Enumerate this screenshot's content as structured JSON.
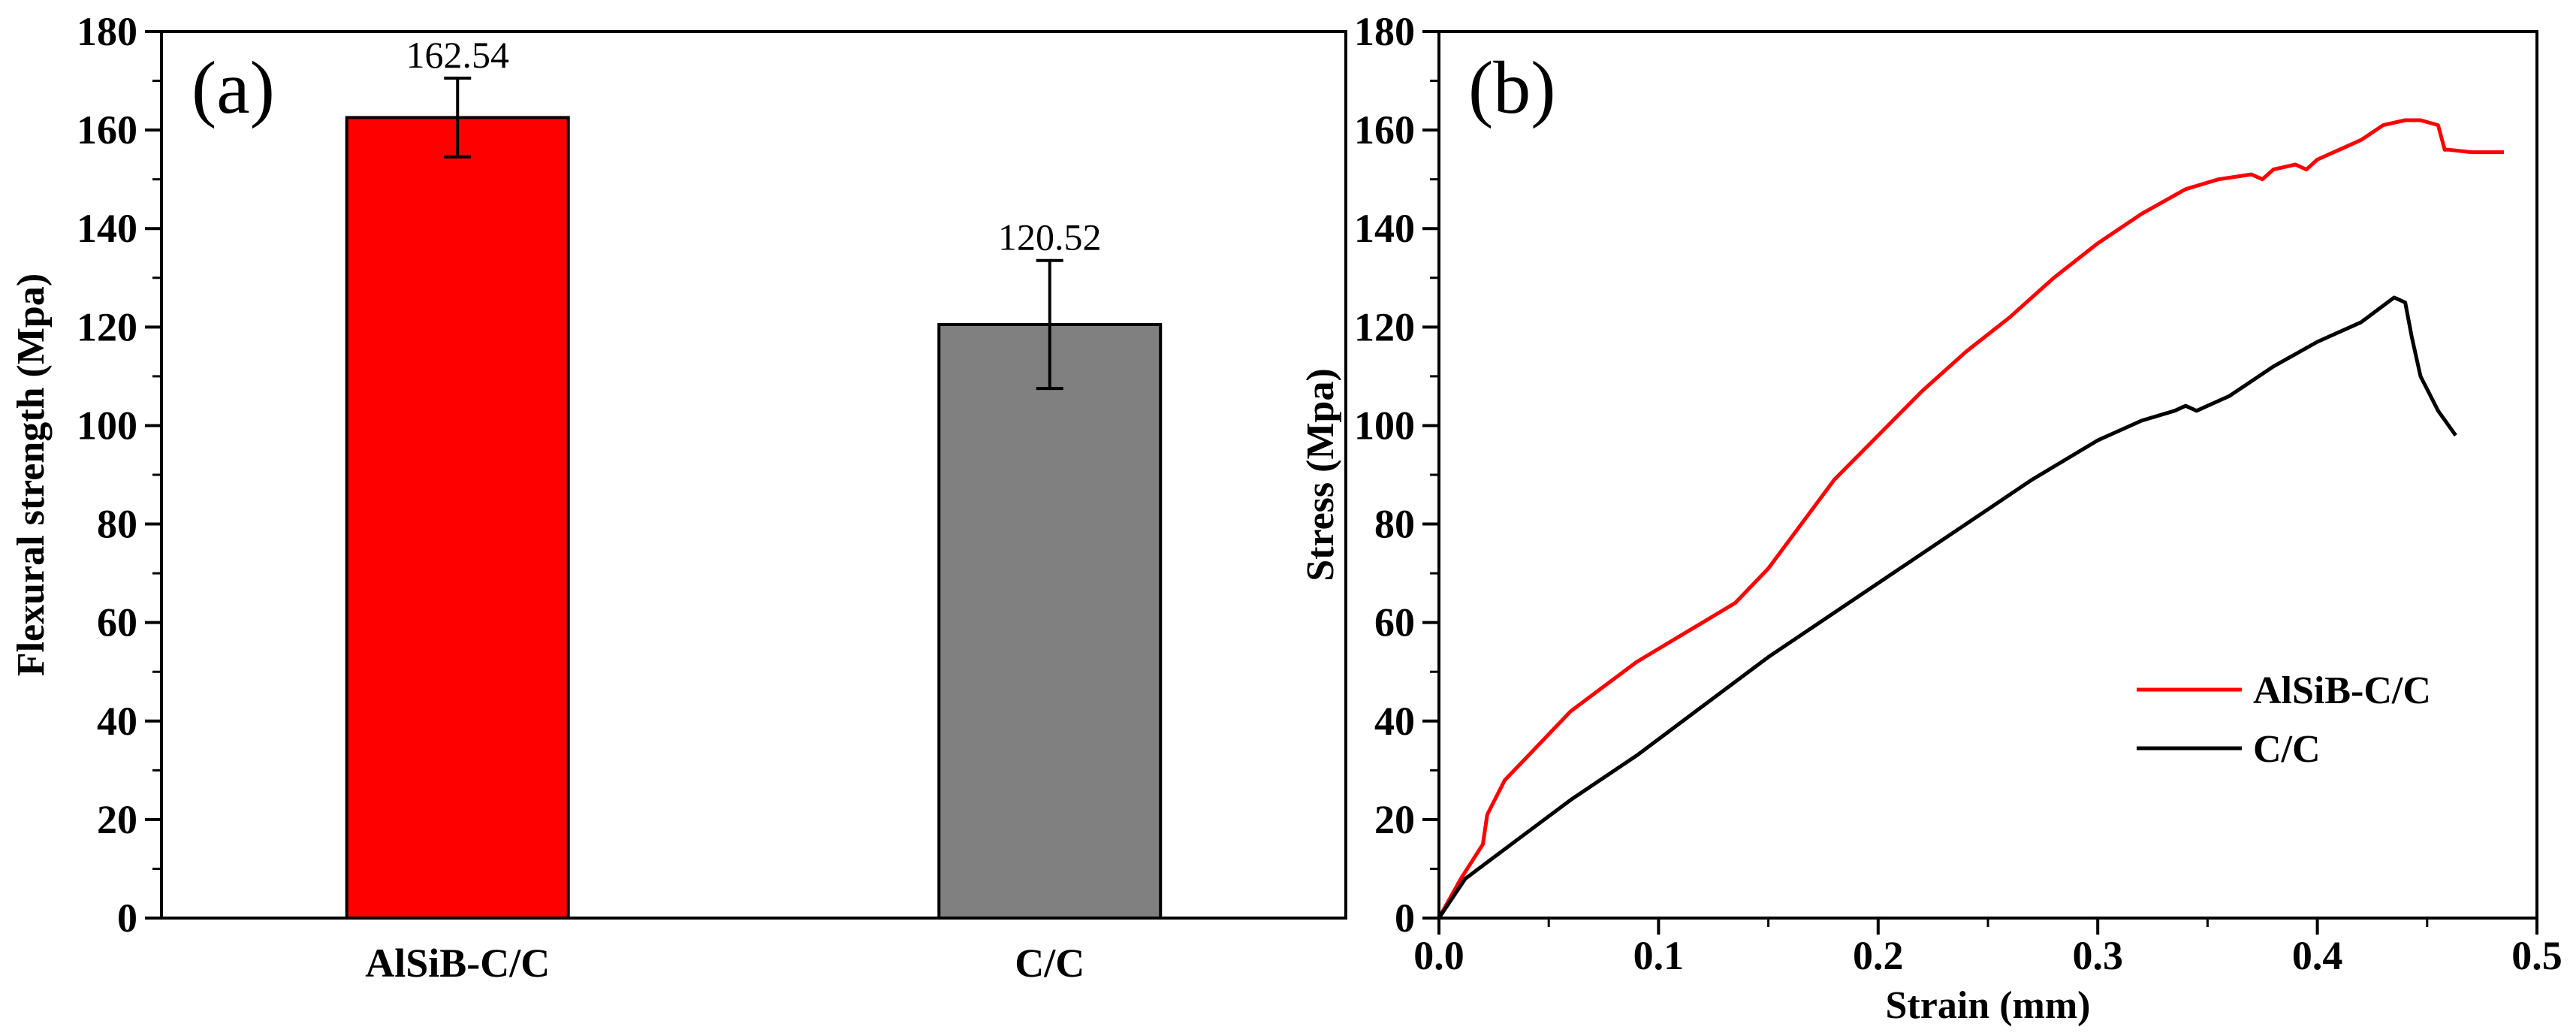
{
  "chart_data": [
    {
      "type": "bar",
      "panel_label": "(a)",
      "categories": [
        "AlSiB-C/C",
        "C/C"
      ],
      "values": [
        162.54,
        120.52
      ],
      "value_labels": [
        "162.54",
        "120.52"
      ],
      "error": [
        8,
        13
      ],
      "colors": [
        "#ff0000",
        "#808080"
      ],
      "xlabel": "",
      "ylabel": "Flexural strength (Mpa)",
      "ylim": [
        0,
        180
      ],
      "yticks": [
        "0",
        "20",
        "40",
        "60",
        "80",
        "100",
        "120",
        "140",
        "160",
        "180"
      ]
    },
    {
      "type": "line",
      "panel_label": "(b)",
      "xlabel": "Strain (mm)",
      "ylabel": "Stress (Mpa)",
      "xlim": [
        0,
        0.5
      ],
      "ylim": [
        0,
        180
      ],
      "xticks": [
        "0.0",
        "0.1",
        "0.2",
        "0.3",
        "0.4",
        "0.5"
      ],
      "yticks": [
        "0",
        "20",
        "40",
        "60",
        "80",
        "100",
        "120",
        "140",
        "160",
        "180"
      ],
      "legend_position": "bottom-right",
      "series": [
        {
          "name": "AlSiB-C/C",
          "color": "#ff0000",
          "x": [
            0,
            0.01,
            0.02,
            0.022,
            0.03,
            0.045,
            0.06,
            0.075,
            0.09,
            0.105,
            0.12,
            0.135,
            0.15,
            0.165,
            0.18,
            0.2,
            0.22,
            0.24,
            0.26,
            0.28,
            0.3,
            0.32,
            0.34,
            0.355,
            0.37,
            0.375,
            0.38,
            0.39,
            0.395,
            0.4,
            0.41,
            0.42,
            0.43,
            0.44,
            0.447,
            0.455,
            0.458,
            0.46,
            0.47,
            0.485
          ],
          "y": [
            0,
            8,
            15,
            21,
            28,
            35,
            42,
            47,
            52,
            56,
            60,
            64,
            71,
            80,
            89,
            98,
            107,
            115,
            122,
            130,
            137,
            143,
            148,
            150,
            151,
            150,
            152,
            153,
            152,
            154,
            156,
            158,
            161,
            162,
            162,
            161,
            156,
            156,
            155.5,
            155.5
          ]
        },
        {
          "name": "C/C",
          "color": "#000000",
          "x": [
            0,
            0.012,
            0.03,
            0.06,
            0.09,
            0.12,
            0.15,
            0.18,
            0.21,
            0.24,
            0.27,
            0.3,
            0.32,
            0.335,
            0.34,
            0.345,
            0.35,
            0.36,
            0.38,
            0.4,
            0.42,
            0.435,
            0.44,
            0.443,
            0.447,
            0.455,
            0.463
          ],
          "y": [
            0,
            8,
            14,
            24,
            33,
            43,
            53,
            62,
            71,
            80,
            89,
            97,
            101,
            103,
            104,
            103,
            104,
            106,
            112,
            117,
            121,
            126,
            125,
            118,
            110,
            103,
            98
          ]
        }
      ]
    }
  ]
}
